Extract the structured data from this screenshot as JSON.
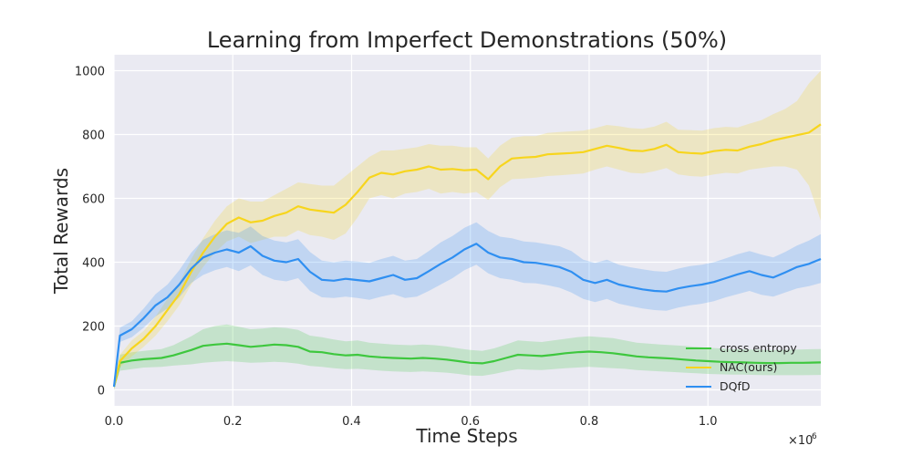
{
  "chart_data": {
    "type": "line",
    "title": "Learning from Imperfect Demonstrations (50%)",
    "xlabel": "Time Steps",
    "ylabel": "Total Rewards",
    "x_offset_label": "×10",
    "x_offset_exponent": "6",
    "xlim": [
      0.0,
      1.19
    ],
    "ylim": [
      -50,
      1050
    ],
    "x_ticks": [
      0.0,
      0.2,
      0.4,
      0.6,
      0.8,
      1.0
    ],
    "x_tick_labels": [
      "0.0",
      "0.2",
      "0.4",
      "0.6",
      "0.8",
      "1.0"
    ],
    "y_ticks": [
      0,
      200,
      400,
      600,
      800,
      1000
    ],
    "y_tick_labels": [
      "0",
      "200",
      "400",
      "600",
      "800",
      "1000"
    ],
    "grid": true,
    "legend_position": "lower-right",
    "series": [
      {
        "name": "cross entropy",
        "color": "#3ec73e",
        "points": [
          [
            0.0,
            10
          ],
          [
            0.01,
            85
          ],
          [
            0.03,
            92
          ],
          [
            0.05,
            96
          ],
          [
            0.08,
            100
          ],
          [
            0.1,
            108
          ],
          [
            0.13,
            125
          ],
          [
            0.15,
            138
          ],
          [
            0.17,
            142
          ],
          [
            0.19,
            145
          ],
          [
            0.21,
            140
          ],
          [
            0.23,
            135
          ],
          [
            0.25,
            138
          ],
          [
            0.27,
            142
          ],
          [
            0.29,
            140
          ],
          [
            0.31,
            135
          ],
          [
            0.33,
            120
          ],
          [
            0.35,
            118
          ],
          [
            0.37,
            112
          ],
          [
            0.39,
            108
          ],
          [
            0.41,
            110
          ],
          [
            0.43,
            105
          ],
          [
            0.45,
            102
          ],
          [
            0.47,
            100
          ],
          [
            0.5,
            98
          ],
          [
            0.52,
            100
          ],
          [
            0.54,
            98
          ],
          [
            0.56,
            95
          ],
          [
            0.58,
            90
          ],
          [
            0.6,
            85
          ],
          [
            0.62,
            83
          ],
          [
            0.64,
            90
          ],
          [
            0.66,
            100
          ],
          [
            0.68,
            110
          ],
          [
            0.7,
            108
          ],
          [
            0.72,
            106
          ],
          [
            0.74,
            110
          ],
          [
            0.76,
            115
          ],
          [
            0.78,
            118
          ],
          [
            0.8,
            120
          ],
          [
            0.82,
            118
          ],
          [
            0.84,
            115
          ],
          [
            0.86,
            110
          ],
          [
            0.88,
            105
          ],
          [
            0.9,
            102
          ],
          [
            0.92,
            100
          ],
          [
            0.94,
            98
          ],
          [
            0.96,
            95
          ],
          [
            0.98,
            92
          ],
          [
            1.0,
            90
          ],
          [
            1.02,
            88
          ],
          [
            1.04,
            87
          ],
          [
            1.06,
            86
          ],
          [
            1.08,
            85
          ],
          [
            1.1,
            84
          ],
          [
            1.12,
            84
          ],
          [
            1.14,
            85
          ],
          [
            1.16,
            85
          ],
          [
            1.19,
            86
          ]
        ],
        "lower": [
          0,
          60,
          65,
          70,
          72,
          76,
          80,
          85,
          88,
          90,
          88,
          85,
          86,
          88,
          86,
          82,
          75,
          72,
          68,
          65,
          66,
          63,
          60,
          58,
          56,
          58,
          56,
          54,
          50,
          45,
          44,
          50,
          58,
          65,
          63,
          62,
          65,
          68,
          70,
          72,
          70,
          68,
          66,
          62,
          60,
          58,
          56,
          54,
          52,
          50,
          49,
          48,
          48,
          47,
          46,
          46,
          46,
          46,
          47
        ],
        "upper": [
          20,
          110,
          118,
          122,
          128,
          140,
          168,
          190,
          200,
          205,
          198,
          190,
          192,
          196,
          194,
          188,
          170,
          165,
          158,
          152,
          155,
          148,
          145,
          142,
          140,
          142,
          140,
          136,
          130,
          125,
          122,
          130,
          142,
          155,
          152,
          150,
          155,
          160,
          165,
          168,
          165,
          162,
          155,
          148,
          145,
          142,
          140,
          138,
          135,
          132,
          130,
          128,
          127,
          126,
          125,
          125,
          126,
          127,
          128
        ]
      },
      {
        "name": "NAC(ours)",
        "color": "#f7d51d",
        "points": [
          [
            0.0,
            10
          ],
          [
            0.01,
            90
          ],
          [
            0.03,
            130
          ],
          [
            0.05,
            160
          ],
          [
            0.07,
            200
          ],
          [
            0.09,
            250
          ],
          [
            0.11,
            300
          ],
          [
            0.13,
            370
          ],
          [
            0.15,
            430
          ],
          [
            0.17,
            480
          ],
          [
            0.19,
            520
          ],
          [
            0.21,
            540
          ],
          [
            0.23,
            525
          ],
          [
            0.25,
            530
          ],
          [
            0.27,
            545
          ],
          [
            0.29,
            555
          ],
          [
            0.31,
            575
          ],
          [
            0.33,
            565
          ],
          [
            0.35,
            560
          ],
          [
            0.37,
            555
          ],
          [
            0.39,
            580
          ],
          [
            0.41,
            620
          ],
          [
            0.43,
            665
          ],
          [
            0.45,
            680
          ],
          [
            0.47,
            675
          ],
          [
            0.49,
            685
          ],
          [
            0.51,
            690
          ],
          [
            0.53,
            700
          ],
          [
            0.55,
            690
          ],
          [
            0.57,
            692
          ],
          [
            0.59,
            688
          ],
          [
            0.61,
            690
          ],
          [
            0.63,
            660
          ],
          [
            0.65,
            700
          ],
          [
            0.67,
            725
          ],
          [
            0.69,
            728
          ],
          [
            0.71,
            730
          ],
          [
            0.73,
            738
          ],
          [
            0.75,
            740
          ],
          [
            0.77,
            742
          ],
          [
            0.79,
            745
          ],
          [
            0.81,
            755
          ],
          [
            0.83,
            765
          ],
          [
            0.85,
            758
          ],
          [
            0.87,
            750
          ],
          [
            0.89,
            748
          ],
          [
            0.91,
            755
          ],
          [
            0.93,
            768
          ],
          [
            0.95,
            745
          ],
          [
            0.97,
            742
          ],
          [
            0.99,
            740
          ],
          [
            1.01,
            748
          ],
          [
            1.03,
            752
          ],
          [
            1.05,
            750
          ],
          [
            1.07,
            762
          ],
          [
            1.09,
            770
          ],
          [
            1.11,
            782
          ],
          [
            1.13,
            790
          ],
          [
            1.15,
            798
          ],
          [
            1.17,
            806
          ],
          [
            1.19,
            832
          ]
        ],
        "lower": [
          0,
          70,
          105,
          135,
          170,
          215,
          265,
          330,
          385,
          430,
          465,
          480,
          460,
          470,
          480,
          480,
          500,
          485,
          480,
          470,
          490,
          540,
          600,
          610,
          600,
          615,
          620,
          630,
          615,
          620,
          615,
          620,
          595,
          635,
          660,
          662,
          665,
          670,
          672,
          675,
          678,
          690,
          700,
          690,
          680,
          678,
          685,
          695,
          675,
          670,
          668,
          675,
          680,
          678,
          690,
          695,
          700,
          700,
          690,
          640,
          530
        ],
        "upper": [
          20,
          110,
          155,
          185,
          230,
          285,
          335,
          410,
          475,
          530,
          575,
          600,
          590,
          590,
          610,
          630,
          650,
          645,
          640,
          640,
          670,
          700,
          730,
          750,
          750,
          755,
          760,
          770,
          765,
          765,
          760,
          760,
          725,
          765,
          790,
          795,
          795,
          805,
          808,
          810,
          812,
          820,
          830,
          826,
          820,
          818,
          825,
          840,
          815,
          814,
          812,
          820,
          824,
          822,
          834,
          845,
          864,
          880,
          905,
          960,
          1000
        ]
      },
      {
        "name": "DQfD",
        "color": "#2f8ff1",
        "points": [
          [
            0.0,
            10
          ],
          [
            0.01,
            170
          ],
          [
            0.03,
            190
          ],
          [
            0.05,
            225
          ],
          [
            0.07,
            265
          ],
          [
            0.09,
            290
          ],
          [
            0.11,
            330
          ],
          [
            0.13,
            380
          ],
          [
            0.15,
            415
          ],
          [
            0.17,
            430
          ],
          [
            0.19,
            440
          ],
          [
            0.21,
            430
          ],
          [
            0.23,
            450
          ],
          [
            0.25,
            420
          ],
          [
            0.27,
            405
          ],
          [
            0.29,
            400
          ],
          [
            0.31,
            410
          ],
          [
            0.33,
            370
          ],
          [
            0.35,
            345
          ],
          [
            0.37,
            342
          ],
          [
            0.39,
            348
          ],
          [
            0.41,
            344
          ],
          [
            0.43,
            340
          ],
          [
            0.45,
            350
          ],
          [
            0.47,
            360
          ],
          [
            0.49,
            345
          ],
          [
            0.51,
            350
          ],
          [
            0.53,
            372
          ],
          [
            0.55,
            395
          ],
          [
            0.57,
            415
          ],
          [
            0.59,
            440
          ],
          [
            0.61,
            458
          ],
          [
            0.63,
            430
          ],
          [
            0.65,
            415
          ],
          [
            0.67,
            410
          ],
          [
            0.69,
            400
          ],
          [
            0.71,
            398
          ],
          [
            0.73,
            392
          ],
          [
            0.75,
            385
          ],
          [
            0.77,
            370
          ],
          [
            0.79,
            345
          ],
          [
            0.81,
            335
          ],
          [
            0.83,
            345
          ],
          [
            0.85,
            330
          ],
          [
            0.87,
            322
          ],
          [
            0.89,
            315
          ],
          [
            0.91,
            310
          ],
          [
            0.93,
            308
          ],
          [
            0.95,
            318
          ],
          [
            0.97,
            325
          ],
          [
            0.99,
            330
          ],
          [
            1.01,
            338
          ],
          [
            1.03,
            350
          ],
          [
            1.05,
            362
          ],
          [
            1.07,
            372
          ],
          [
            1.09,
            360
          ],
          [
            1.11,
            352
          ],
          [
            1.13,
            368
          ],
          [
            1.15,
            385
          ],
          [
            1.17,
            395
          ],
          [
            1.19,
            410
          ]
        ],
        "lower": [
          0,
          150,
          165,
          195,
          230,
          255,
          290,
          335,
          360,
          375,
          385,
          372,
          390,
          360,
          345,
          340,
          350,
          310,
          290,
          288,
          292,
          288,
          282,
          292,
          300,
          288,
          292,
          310,
          330,
          350,
          375,
          392,
          365,
          350,
          345,
          335,
          334,
          328,
          320,
          305,
          285,
          275,
          285,
          270,
          262,
          255,
          250,
          248,
          258,
          265,
          270,
          278,
          290,
          300,
          310,
          298,
          292,
          305,
          318,
          325,
          335
        ],
        "upper": [
          20,
          195,
          215,
          255,
          300,
          330,
          375,
          430,
          470,
          488,
          500,
          492,
          512,
          482,
          468,
          462,
          472,
          432,
          405,
          400,
          405,
          402,
          398,
          410,
          420,
          405,
          410,
          435,
          462,
          482,
          508,
          525,
          498,
          480,
          475,
          465,
          462,
          456,
          450,
          435,
          408,
          398,
          408,
          392,
          384,
          378,
          372,
          370,
          380,
          388,
          392,
          400,
          412,
          425,
          435,
          424,
          415,
          432,
          452,
          468,
          488
        ]
      }
    ]
  }
}
